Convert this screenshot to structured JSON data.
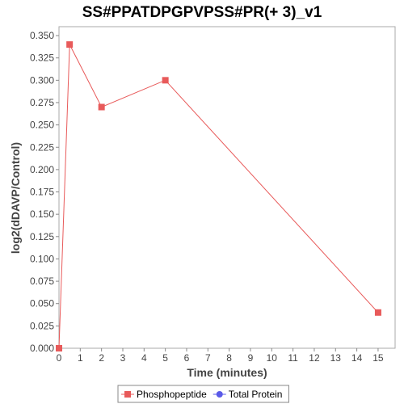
{
  "chart_data": {
    "type": "line",
    "title": "SS#PPATDPGPVPSS#PR(+ 3)_v1",
    "xlabel": "Time (minutes)",
    "ylabel": "log2(dDAVP/Control)",
    "xlim": [
      0,
      15.8
    ],
    "ylim": [
      0,
      0.36
    ],
    "x_ticks": [
      0,
      1,
      2,
      3,
      4,
      5,
      6,
      7,
      8,
      9,
      10,
      11,
      12,
      13,
      14,
      15
    ],
    "y_ticks": [
      0.0,
      0.025,
      0.05,
      0.075,
      0.1,
      0.125,
      0.15,
      0.175,
      0.2,
      0.225,
      0.25,
      0.275,
      0.3,
      0.325,
      0.35
    ],
    "y_tick_decimals": 3,
    "grid": false,
    "legend_position": "bottom",
    "series": [
      {
        "name": "Phosphopeptide",
        "color": "#e85a5a",
        "marker": "square",
        "points": [
          {
            "x": 0,
            "y": 0.0
          },
          {
            "x": 0.5,
            "y": 0.34
          },
          {
            "x": 2,
            "y": 0.27
          },
          {
            "x": 5,
            "y": 0.3
          },
          {
            "x": 15,
            "y": 0.04
          }
        ]
      },
      {
        "name": "Total Protein",
        "color": "#5a5ae8",
        "marker": "circle",
        "points": []
      }
    ]
  }
}
